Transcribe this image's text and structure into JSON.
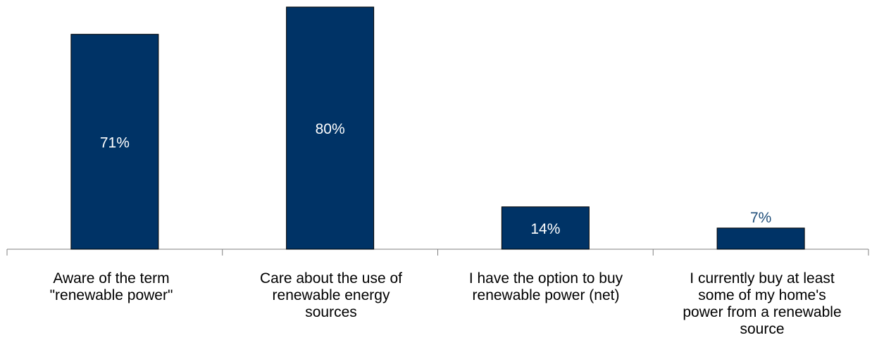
{
  "colors": {
    "bar": "#003366",
    "bar_edge": "#000000",
    "label_inside": "#ffffff",
    "label_outside": "#1f4e79",
    "axis": "#808080"
  },
  "chart_data": {
    "type": "bar",
    "title": "",
    "xlabel": "",
    "ylabel": "",
    "ylim": [
      0,
      88
    ],
    "grid": false,
    "legend": "none",
    "categories": [
      "Aware of the term \"renewable power\"",
      "Care about the use of renewable energy sources",
      "I have the option to buy renewable power (net)",
      "I currently buy at least some of my home's power from a renewable source"
    ],
    "values": [
      71,
      80,
      14,
      7
    ],
    "data_labels": [
      "71%",
      "80%",
      "14%",
      "7%"
    ]
  }
}
